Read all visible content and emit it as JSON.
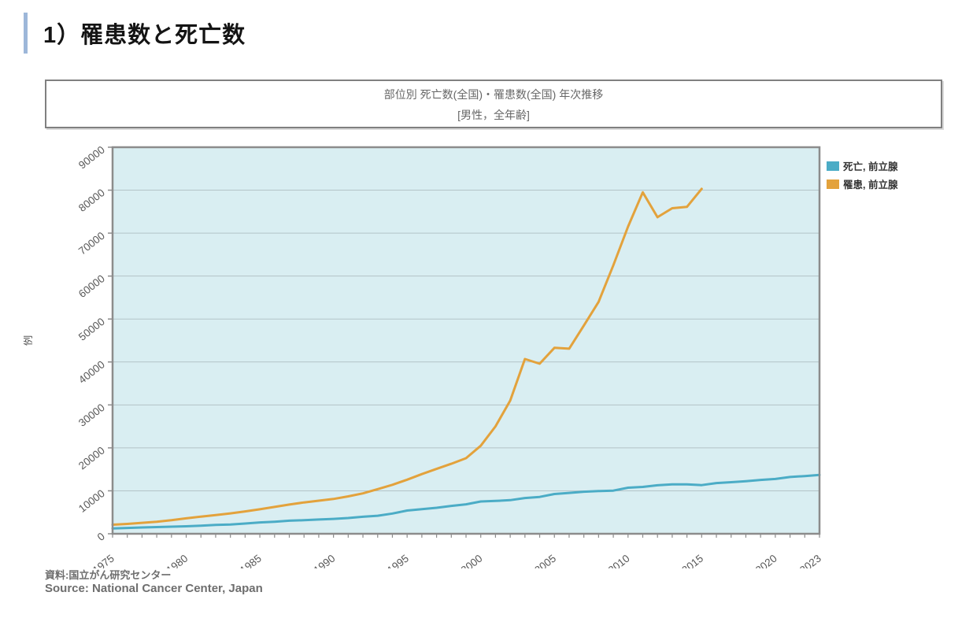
{
  "page": {
    "heading": "1）罹患数と死亡数"
  },
  "chart": {
    "title_line1": "部位別 死亡数(全国)・罹患数(全国) 年次推移",
    "title_line2": "[男性，全年齢]",
    "source_line1": "資料:国立がん研究センター",
    "source_line2": "Source: National Cancer Center, Japan"
  },
  "colors": {
    "accent_bar": "#9db7d9",
    "death_line": "#4bacc6",
    "incidence_line": "#e3a23c",
    "plot_background": "#d9eef2",
    "gridline": "#b3c3c7",
    "plot_border": "#8c8c8c",
    "tick_label": "#595959"
  },
  "chart_data": {
    "type": "line",
    "title": "部位別 死亡数(全国)・罹患数(全国) 年次推移",
    "subtitle": "[男性，全年齢]",
    "xlabel": "",
    "ylabel": "例",
    "xlim": [
      1975,
      2023
    ],
    "ylim": [
      0,
      90000
    ],
    "grid": "horizontal",
    "legend_position": "outside-top-right",
    "ytick_labels": [
      "0",
      "10000",
      "20000",
      "30000",
      "40000",
      "50000",
      "60000",
      "70000",
      "80000",
      "90000"
    ],
    "xtick_labeled_years": [
      1975,
      1980,
      1985,
      1990,
      1995,
      2000,
      2005,
      2010,
      2015,
      2020,
      2023
    ],
    "xtick_minor_every_year": true,
    "series": [
      {
        "name": "死亡, 前立腺",
        "color": "#4bacc6",
        "start_year": 1975,
        "values": [
          1250,
          1350,
          1470,
          1560,
          1650,
          1740,
          1870,
          2080,
          2160,
          2390,
          2640,
          2810,
          3050,
          3150,
          3320,
          3460,
          3670,
          3960,
          4200,
          4710,
          5400,
          5740,
          6050,
          6480,
          6850,
          7510,
          7650,
          7830,
          8320,
          8580,
          9260,
          9520,
          9790,
          9940,
          10040,
          10720,
          10910,
          11300,
          11510,
          11510,
          11330,
          11800,
          12010,
          12250,
          12540,
          12760,
          13220,
          13440,
          13700
        ]
      },
      {
        "name": "罹患, 前立腺",
        "color": "#e3a23c",
        "start_year": 1975,
        "values": [
          2100,
          2300,
          2550,
          2800,
          3150,
          3600,
          4000,
          4350,
          4750,
          5200,
          5700,
          6250,
          6800,
          7300,
          7700,
          8100,
          8700,
          9400,
          10400,
          11400,
          12600,
          13900,
          15100,
          16300,
          17600,
          20500,
          25000,
          31000,
          40700,
          39600,
          43300,
          43100,
          48500,
          54000,
          62500,
          71500,
          79500,
          73700,
          75800,
          76100,
          80300
        ]
      }
    ]
  }
}
